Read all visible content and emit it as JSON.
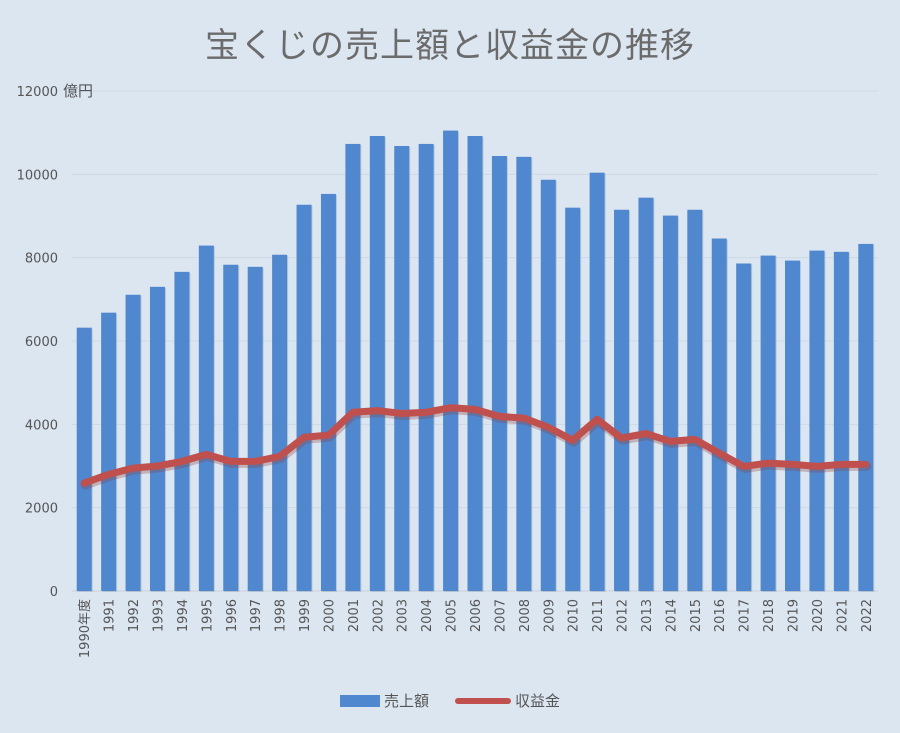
{
  "chart_data": {
    "type": "bar",
    "title": "宝くじの売上額と収益金の推移",
    "ylabel": "億円",
    "xlabel": "",
    "ylim": [
      0,
      12000
    ],
    "yticks": [
      "0",
      "2000",
      "4000",
      "6000",
      "8000",
      "10000",
      "12000"
    ],
    "grid": true,
    "legend_position": "bottom",
    "categories": [
      "1990年度",
      "1991",
      "1992",
      "1993",
      "1994",
      "1995",
      "1996",
      "1997",
      "1998",
      "1999",
      "2000",
      "2001",
      "2002",
      "2003",
      "2004",
      "2005",
      "2006",
      "2007",
      "2008",
      "2009",
      "2010",
      "2011",
      "2012",
      "2013",
      "2014",
      "2015",
      "2016",
      "2017",
      "2018",
      "2019",
      "2020",
      "2021",
      "2022"
    ],
    "series": [
      {
        "name": "売上額",
        "type": "bar",
        "color": "#4f88cf",
        "values": [
          6320,
          6680,
          7110,
          7300,
          7660,
          8290,
          7830,
          7780,
          8070,
          9270,
          9530,
          10730,
          10920,
          10680,
          10730,
          11050,
          10920,
          10440,
          10420,
          9870,
          9200,
          10040,
          9150,
          9440,
          9010,
          9150,
          8460,
          7860,
          8050,
          7930,
          8170,
          8140,
          8330
        ]
      },
      {
        "name": "収益金",
        "type": "line",
        "color": "#c0504d",
        "values": [
          2590,
          2800,
          2950,
          3000,
          3110,
          3280,
          3110,
          3110,
          3230,
          3690,
          3740,
          4290,
          4330,
          4260,
          4290,
          4400,
          4360,
          4190,
          4150,
          3930,
          3620,
          4120,
          3670,
          3780,
          3590,
          3640,
          3310,
          2990,
          3070,
          3040,
          2990,
          3040,
          3040
        ]
      }
    ]
  }
}
